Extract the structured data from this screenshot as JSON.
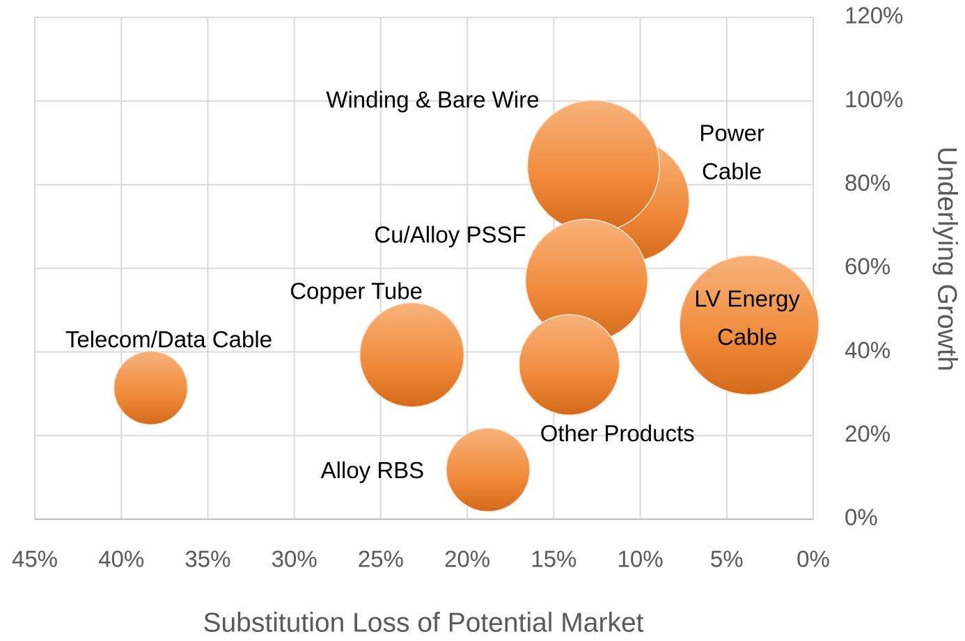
{
  "chart_data": {
    "type": "bubble",
    "xlabel": "Substitution Loss of Potential Market",
    "ylabel": "Underlying Growth",
    "labels": [
      [
        "Telecom/Data Cable"
      ],
      [
        "Copper Tube"
      ],
      [
        "Alloy RBS"
      ],
      [
        "Power",
        "Cable"
      ],
      [
        "Winding & Bare Wire"
      ],
      [
        "Cu/Alloy PSSF"
      ],
      [
        "Other Products"
      ],
      [
        "LV Energy",
        "Cable"
      ]
    ],
    "x": [
      38.3,
      23.2,
      18.8,
      10.7,
      12.7,
      13.1,
      14.1,
      3.7
    ],
    "values": [
      31.4,
      39.3,
      11.8,
      76.2,
      84.4,
      57.1,
      36.9,
      46.4
    ],
    "sizes": [
      28,
      56,
      36,
      77,
      90,
      77,
      52,
      100
    ],
    "color": "#f08a3a",
    "xlim": [
      45,
      0
    ],
    "ylim": [
      0,
      120
    ],
    "xticks": [
      {
        "value": 45,
        "label": "45%"
      },
      {
        "value": 40,
        "label": "40%"
      },
      {
        "value": 35,
        "label": "35%"
      },
      {
        "value": 30,
        "label": "30%"
      },
      {
        "value": 25,
        "label": "25%"
      },
      {
        "value": 20,
        "label": "20%"
      },
      {
        "value": 15,
        "label": "15%"
      },
      {
        "value": 10,
        "label": "10%"
      },
      {
        "value": 5,
        "label": "5%"
      },
      {
        "value": 0,
        "label": "0%"
      }
    ],
    "yticks": [
      {
        "value": 0,
        "label": "0%"
      },
      {
        "value": 20,
        "label": "20%"
      },
      {
        "value": 40,
        "label": "40%"
      },
      {
        "value": 60,
        "label": "60%"
      },
      {
        "value": 80,
        "label": "80%"
      },
      {
        "value": 100,
        "label": "100%"
      },
      {
        "value": 120,
        "label": "120%"
      }
    ],
    "grid": true,
    "yaxis_side": "right"
  }
}
